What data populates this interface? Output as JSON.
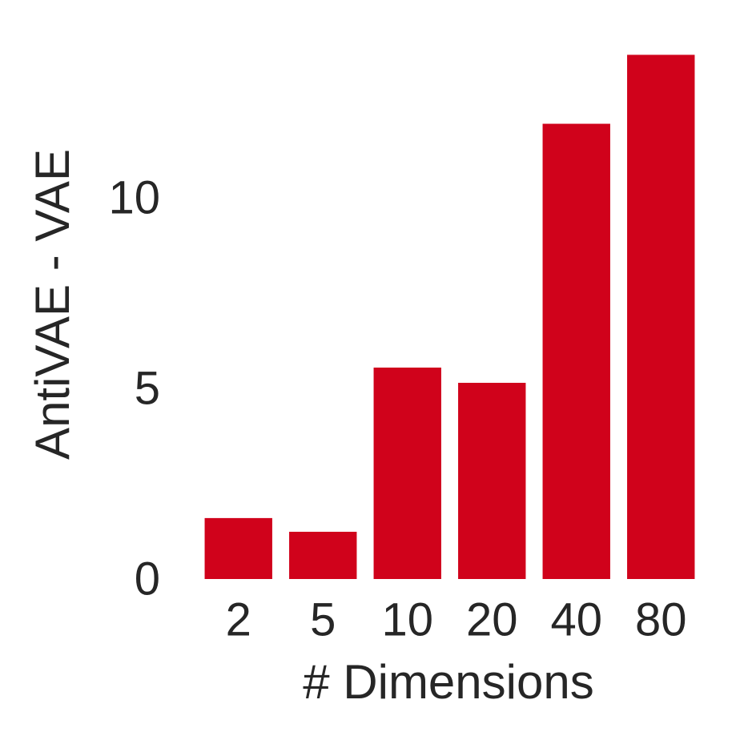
{
  "chart_data": {
    "type": "bar",
    "categories": [
      "2",
      "5",
      "10",
      "20",
      "40",
      "80"
    ],
    "values": [
      1.6,
      1.24,
      5.55,
      5.15,
      11.95,
      13.76
    ],
    "color": "#d0021b",
    "xlabel": "# Dimensions",
    "ylabel": "AntiVAE - VAE",
    "ylim": [
      0,
      14.4
    ],
    "yticks": [
      0,
      5,
      10
    ],
    "grid": false
  }
}
